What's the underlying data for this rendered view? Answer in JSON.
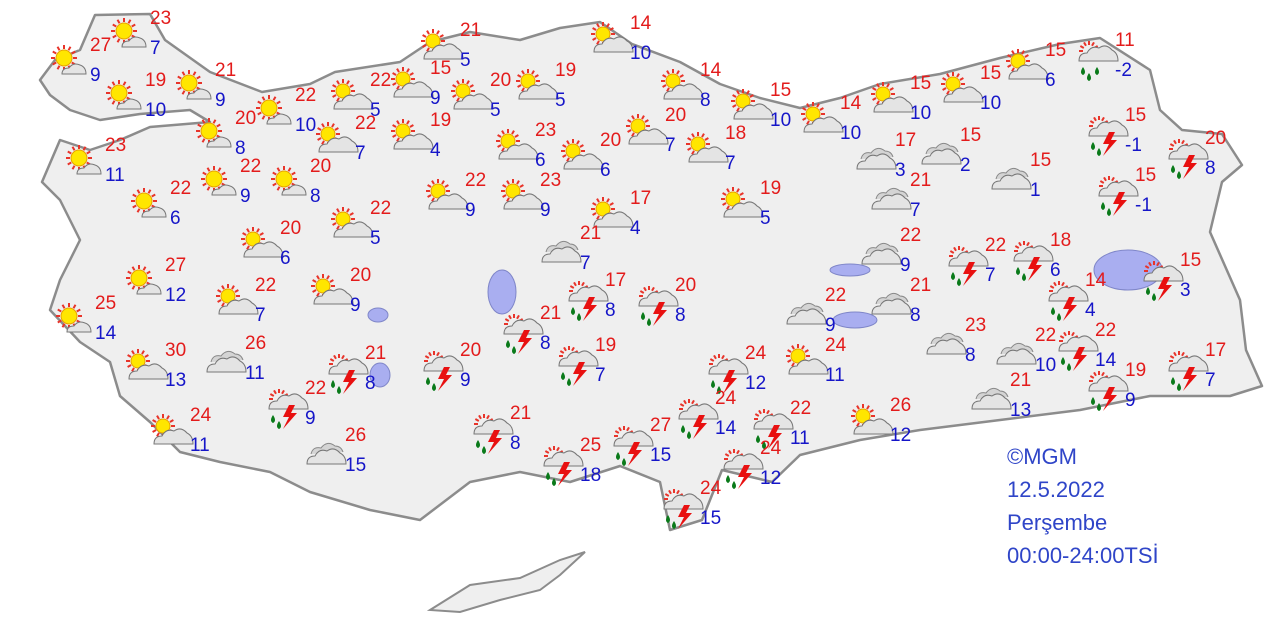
{
  "caption": {
    "copyright": "©MGM",
    "date": "12.5.2022",
    "day": "Perşembe",
    "period": "00:00-24:00TSİ"
  },
  "colors": {
    "max_temp": "#e31b1b",
    "min_temp": "#1515c8",
    "land": "#efefef",
    "border": "#8c8c8c",
    "water": "#a9aef0"
  },
  "stations": [
    {
      "icon": "partly-sunny",
      "max": "27",
      "min": "9"
    },
    {
      "icon": "partly-sunny",
      "max": "23",
      "min": "7"
    },
    {
      "icon": "partly-sunny",
      "max": "19",
      "min": "10"
    },
    {
      "icon": "partly-sunny",
      "max": "21",
      "min": "9"
    },
    {
      "icon": "partly-sunny",
      "max": "20",
      "min": "8"
    },
    {
      "icon": "partly-sunny",
      "max": "22",
      "min": "10"
    },
    {
      "icon": "partly-sunny",
      "max": "23",
      "min": "11"
    },
    {
      "icon": "partly-sunny",
      "max": "22",
      "min": "6"
    },
    {
      "icon": "partly-sunny",
      "max": "22",
      "min": "9"
    },
    {
      "icon": "partly-sunny",
      "max": "20",
      "min": "8"
    },
    {
      "icon": "partly-cloudy",
      "max": "22",
      "min": "7"
    },
    {
      "icon": "partly-cloudy",
      "max": "22",
      "min": "5"
    },
    {
      "icon": "partly-cloudy",
      "max": "15",
      "min": "9"
    },
    {
      "icon": "partly-cloudy",
      "max": "21",
      "min": "5"
    },
    {
      "icon": "partly-cloudy",
      "max": "20",
      "min": "5"
    },
    {
      "icon": "partly-cloudy",
      "max": "19",
      "min": "5"
    },
    {
      "icon": "partly-cloudy",
      "max": "19",
      "min": "4"
    },
    {
      "icon": "partly-cloudy",
      "max": "23",
      "min": "6"
    },
    {
      "icon": "partly-cloudy",
      "max": "20",
      "min": "6"
    },
    {
      "icon": "partly-cloudy",
      "max": "14",
      "min": "10"
    },
    {
      "icon": "partly-cloudy",
      "max": "20",
      "min": "7"
    },
    {
      "icon": "partly-cloudy",
      "max": "14",
      "min": "8"
    },
    {
      "icon": "partly-cloudy",
      "max": "18",
      "min": "7"
    },
    {
      "icon": "partly-cloudy",
      "max": "15",
      "min": "10"
    },
    {
      "icon": "partly-cloudy",
      "max": "14",
      "min": "10"
    },
    {
      "icon": "partly-cloudy",
      "max": "15",
      "min": "10"
    },
    {
      "icon": "partly-cloudy",
      "max": "15",
      "min": "10"
    },
    {
      "icon": "partly-cloudy",
      "max": "15",
      "min": "6"
    },
    {
      "icon": "rain",
      "max": "11",
      "min": "-2"
    },
    {
      "icon": "thunderstorm",
      "max": "15",
      "min": "-1"
    },
    {
      "icon": "thunderstorm",
      "max": "20",
      "min": "8"
    },
    {
      "icon": "thunderstorm",
      "max": "15",
      "min": "-1"
    },
    {
      "icon": "cloudy",
      "max": "15",
      "min": "1"
    },
    {
      "icon": "cloudy",
      "max": "15",
      "min": "2"
    },
    {
      "icon": "cloudy",
      "max": "17",
      "min": "3"
    },
    {
      "icon": "cloudy",
      "max": "21",
      "min": "7"
    },
    {
      "icon": "cloudy",
      "max": "22",
      "min": "9"
    },
    {
      "icon": "cloudy",
      "max": "21",
      "min": "8"
    },
    {
      "icon": "thunderstorm",
      "max": "22",
      "min": "7"
    },
    {
      "icon": "thunderstorm",
      "max": "18",
      "min": "6"
    },
    {
      "icon": "thunderstorm",
      "max": "15",
      "min": "3"
    },
    {
      "icon": "thunderstorm",
      "max": "14",
      "min": "4"
    },
    {
      "icon": "thunderstorm",
      "max": "22",
      "min": "14"
    },
    {
      "icon": "cloudy",
      "max": "22",
      "min": "10"
    },
    {
      "icon": "cloudy",
      "max": "23",
      "min": "8"
    },
    {
      "icon": "cloudy",
      "max": "21",
      "min": "13"
    },
    {
      "icon": "thunderstorm",
      "max": "19",
      "min": "9"
    },
    {
      "icon": "thunderstorm",
      "max": "17",
      "min": "7"
    },
    {
      "icon": "cloudy",
      "max": "22",
      "min": "9"
    },
    {
      "icon": "partly-cloudy",
      "max": "24",
      "min": "11"
    },
    {
      "icon": "partly-cloudy",
      "max": "26",
      "min": "12"
    },
    {
      "icon": "thunderstorm",
      "max": "24",
      "min": "12"
    },
    {
      "icon": "thunderstorm",
      "max": "24",
      "min": "14"
    },
    {
      "icon": "thunderstorm",
      "max": "22",
      "min": "11"
    },
    {
      "icon": "thunderstorm",
      "max": "24",
      "min": "12"
    },
    {
      "icon": "thunderstorm",
      "max": "24",
      "min": "15"
    },
    {
      "icon": "thunderstorm",
      "max": "27",
      "min": "15"
    },
    {
      "icon": "thunderstorm",
      "max": "25",
      "min": "18"
    },
    {
      "icon": "thunderstorm",
      "max": "21",
      "min": "8"
    },
    {
      "icon": "thunderstorm",
      "max": "20",
      "min": "9"
    },
    {
      "icon": "thunderstorm",
      "max": "21",
      "min": "8"
    },
    {
      "icon": "thunderstorm",
      "max": "22",
      "min": "9"
    },
    {
      "icon": "cloudy",
      "max": "26",
      "min": "15"
    },
    {
      "icon": "partly-cloudy",
      "max": "24",
      "min": "11"
    },
    {
      "icon": "partly-cloudy",
      "max": "30",
      "min": "13"
    },
    {
      "icon": "cloudy",
      "max": "26",
      "min": "11"
    },
    {
      "icon": "partly-sunny",
      "max": "25",
      "min": "14"
    },
    {
      "icon": "partly-sunny",
      "max": "27",
      "min": "12"
    },
    {
      "icon": "partly-cloudy",
      "max": "22",
      "min": "7"
    },
    {
      "icon": "partly-cloudy",
      "max": "20",
      "min": "9"
    },
    {
      "icon": "partly-cloudy",
      "max": "20",
      "min": "6"
    },
    {
      "icon": "partly-cloudy",
      "max": "22",
      "min": "5"
    },
    {
      "icon": "partly-cloudy",
      "max": "22",
      "min": "9"
    },
    {
      "icon": "partly-cloudy",
      "max": "23",
      "min": "9"
    },
    {
      "icon": "partly-cloudy",
      "max": "17",
      "min": "4"
    },
    {
      "icon": "partly-cloudy",
      "max": "19",
      "min": "5"
    },
    {
      "icon": "cloudy",
      "max": "21",
      "min": "7"
    },
    {
      "icon": "thunderstorm",
      "max": "17",
      "min": "8"
    },
    {
      "icon": "thunderstorm",
      "max": "20",
      "min": "8"
    },
    {
      "icon": "thunderstorm",
      "max": "21",
      "min": "8"
    },
    {
      "icon": "thunderstorm",
      "max": "19",
      "min": "7"
    }
  ]
}
